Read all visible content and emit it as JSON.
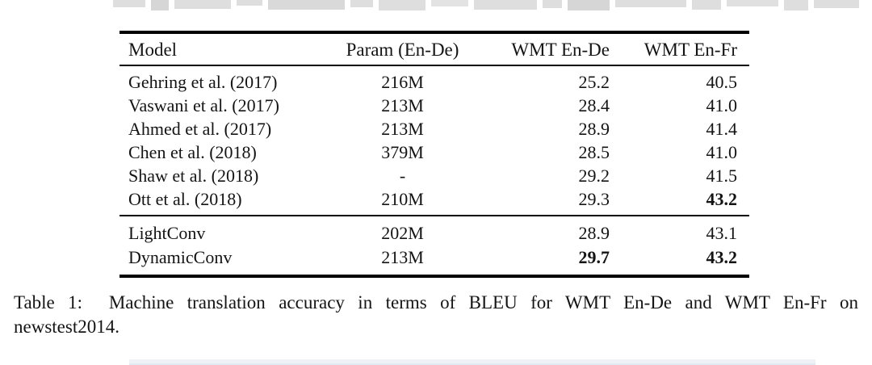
{
  "colors": {
    "background": "#ffffff",
    "text": "#141414",
    "rule": "#000000"
  },
  "table": {
    "columns": [
      "Model",
      "Param (En-De)",
      "WMT En-De",
      "WMT En-Fr"
    ],
    "groups": [
      {
        "rows": [
          {
            "model": "Gehring et al. (2017)",
            "param": "216M",
            "wmt_en_de": "25.2",
            "wmt_en_fr": "40.5",
            "bold": []
          },
          {
            "model": "Vaswani et al. (2017)",
            "param": "213M",
            "wmt_en_de": "28.4",
            "wmt_en_fr": "41.0",
            "bold": []
          },
          {
            "model": "Ahmed et al. (2017)",
            "param": "213M",
            "wmt_en_de": "28.9",
            "wmt_en_fr": "41.4",
            "bold": []
          },
          {
            "model": "Chen et al. (2018)",
            "param": "379M",
            "wmt_en_de": "28.5",
            "wmt_en_fr": "41.0",
            "bold": []
          },
          {
            "model": "Shaw et al. (2018)",
            "param": "-",
            "wmt_en_de": "29.2",
            "wmt_en_fr": "41.5",
            "bold": []
          },
          {
            "model": "Ott et al. (2018)",
            "param": "210M",
            "wmt_en_de": "29.3",
            "wmt_en_fr": "43.2",
            "bold": [
              "wmt_en_fr"
            ]
          }
        ]
      },
      {
        "rows": [
          {
            "model": "LightConv",
            "param": "202M",
            "wmt_en_de": "28.9",
            "wmt_en_fr": "43.1",
            "bold": []
          },
          {
            "model": "DynamicConv",
            "param": "213M",
            "wmt_en_de": "29.7",
            "wmt_en_fr": "43.2",
            "bold": [
              "wmt_en_de",
              "wmt_en_fr"
            ]
          }
        ]
      }
    ]
  },
  "caption": {
    "line1": "Table 1:  Machine translation accuracy in terms of BLEU for WMT En-De and WMT En-Fr on",
    "line2": "newstest2014.",
    "full_text": "Table 1: Machine translation accuracy in terms of BLEU for WMT En-De and WMT En-Fr on newstest2014."
  }
}
